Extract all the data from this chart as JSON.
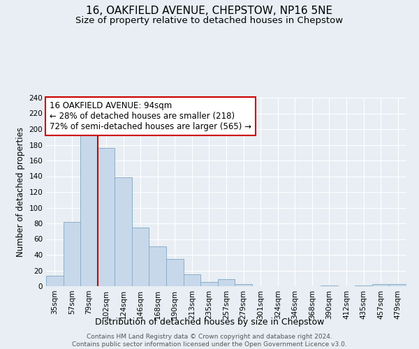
{
  "title": "16, OAKFIELD AVENUE, CHEPSTOW, NP16 5NE",
  "subtitle": "Size of property relative to detached houses in Chepstow",
  "xlabel": "Distribution of detached houses by size in Chepstow",
  "ylabel": "Number of detached properties",
  "bar_color": "#c8d8eb",
  "bar_edge_color": "#8aafc8",
  "background_color": "#e8eef4",
  "plot_bg_color": "#e8eef4",
  "categories": [
    "35sqm",
    "57sqm",
    "79sqm",
    "102sqm",
    "124sqm",
    "146sqm",
    "168sqm",
    "190sqm",
    "213sqm",
    "235sqm",
    "257sqm",
    "279sqm",
    "301sqm",
    "324sqm",
    "346sqm",
    "368sqm",
    "390sqm",
    "412sqm",
    "435sqm",
    "457sqm",
    "479sqm"
  ],
  "values": [
    13,
    82,
    193,
    176,
    139,
    75,
    51,
    35,
    15,
    5,
    9,
    3,
    0,
    0,
    0,
    0,
    1,
    0,
    1,
    3,
    3
  ],
  "ylim": [
    0,
    240
  ],
  "yticks": [
    0,
    20,
    40,
    60,
    80,
    100,
    120,
    140,
    160,
    180,
    200,
    220,
    240
  ],
  "pct_smaller": 28,
  "pct_smaller_count": 218,
  "pct_larger": 72,
  "pct_larger_count": 565,
  "annotation_box_color": "#ffffff",
  "annotation_border_color": "#cc0000",
  "vline_color": "#cc0000",
  "footer_text": "Contains HM Land Registry data © Crown copyright and database right 2024.\nContains public sector information licensed under the Open Government Licence v3.0.",
  "grid_color": "#ffffff",
  "title_fontsize": 11,
  "subtitle_fontsize": 9.5,
  "xlabel_fontsize": 9,
  "ylabel_fontsize": 8.5,
  "tick_fontsize": 7.5,
  "annotation_fontsize": 8.5,
  "footer_fontsize": 6.5
}
